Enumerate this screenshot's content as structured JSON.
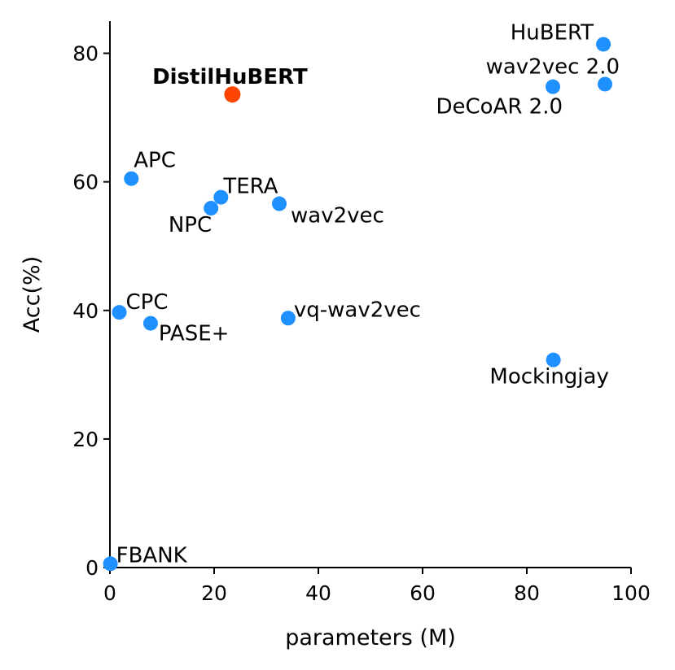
{
  "chart_data": {
    "type": "scatter",
    "xlabel": "parameters (M)",
    "ylabel": "Acc(%)",
    "xlim": [
      0,
      100
    ],
    "ylim": [
      0,
      85
    ],
    "xticks": [
      0,
      20,
      40,
      60,
      80,
      100
    ],
    "yticks": [
      0,
      20,
      40,
      60,
      80
    ],
    "grid": false,
    "colors": {
      "default": "#1e90ff",
      "highlight": "#ff4500"
    },
    "points": [
      {
        "label": "FBANK",
        "x": 0.1,
        "y": 0.6,
        "highlight": false
      },
      {
        "label": "CPC",
        "x": 1.8,
        "y": 39.7,
        "highlight": false
      },
      {
        "label": "PASE+",
        "x": 7.8,
        "y": 38.0,
        "highlight": false
      },
      {
        "label": "APC",
        "x": 4.1,
        "y": 60.5,
        "highlight": false
      },
      {
        "label": "NPC",
        "x": 19.4,
        "y": 55.9,
        "highlight": false
      },
      {
        "label": "TERA",
        "x": 21.3,
        "y": 57.6,
        "highlight": false
      },
      {
        "label": "DistilHuBERT",
        "x": 23.5,
        "y": 73.6,
        "highlight": true
      },
      {
        "label": "wav2vec",
        "x": 32.5,
        "y": 56.6,
        "highlight": false
      },
      {
        "label": "vq-wav2vec",
        "x": 34.2,
        "y": 38.8,
        "highlight": false
      },
      {
        "label": "Mockingjay",
        "x": 85.1,
        "y": 32.3,
        "highlight": false
      },
      {
        "label": "DeCoAR 2.0",
        "x": 85.0,
        "y": 74.8,
        "highlight": false
      },
      {
        "label": "wav2vec 2.0",
        "x": 95.0,
        "y": 75.2,
        "highlight": false
      },
      {
        "label": "HuBERT",
        "x": 94.7,
        "y": 81.4,
        "highlight": false
      }
    ]
  }
}
